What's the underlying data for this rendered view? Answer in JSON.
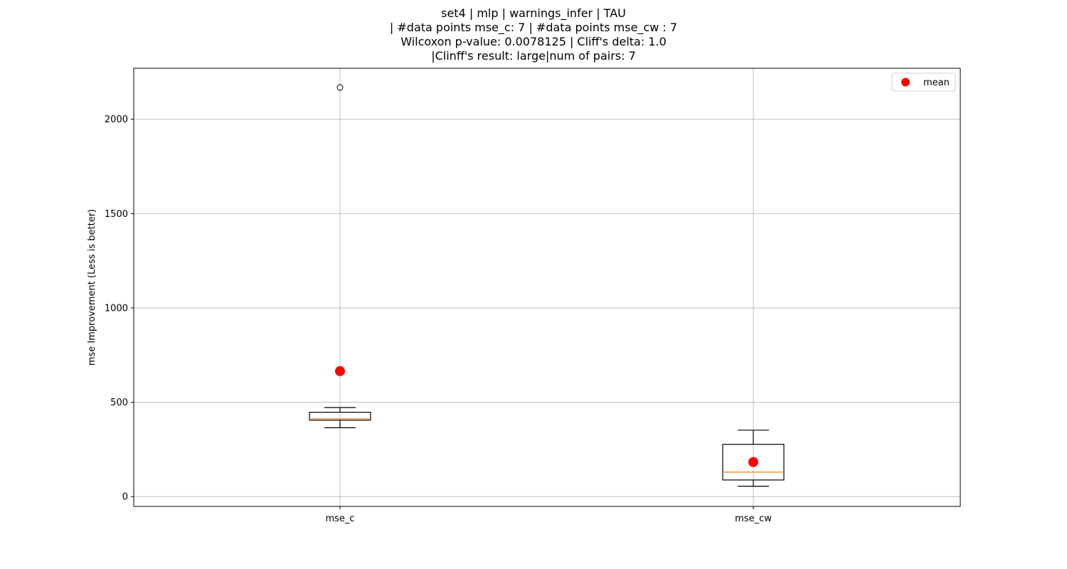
{
  "chart_data": {
    "type": "box",
    "title_lines": [
      "set4 | mlp | warnings_infer | TAU",
      "| #data points mse_c: 7 | #data points mse_cw : 7",
      "Wilcoxon p-value: 0.0078125 | Cliff's delta: 1.0",
      "|Clinff's result: large|num of pairs: 7"
    ],
    "xlabel": "",
    "ylabel": "mse Improvement (Less is better)",
    "ylim": [
      -52,
      2270
    ],
    "yticks": [
      0,
      500,
      1000,
      1500,
      2000
    ],
    "grid": true,
    "legend_position": "top-right",
    "legend": [
      {
        "label": "mean",
        "color": "#ff0000"
      }
    ],
    "colors": {
      "box": "#000000",
      "median": "#ff7f0e",
      "mean": "#ff0000",
      "grid": "#b0b0b0"
    },
    "categories": [
      "mse_c",
      "mse_cw"
    ],
    "boxes": [
      {
        "category": "mse_c",
        "whisker_low": 365,
        "q1": 405,
        "median": 412,
        "q3": 447,
        "whisker_high": 472,
        "mean": 665,
        "outliers": [
          2168
        ]
      },
      {
        "category": "mse_cw",
        "whisker_low": 55,
        "q1": 88,
        "median": 130,
        "q3": 277,
        "whisker_high": 352,
        "mean": 183,
        "outliers": []
      }
    ]
  }
}
